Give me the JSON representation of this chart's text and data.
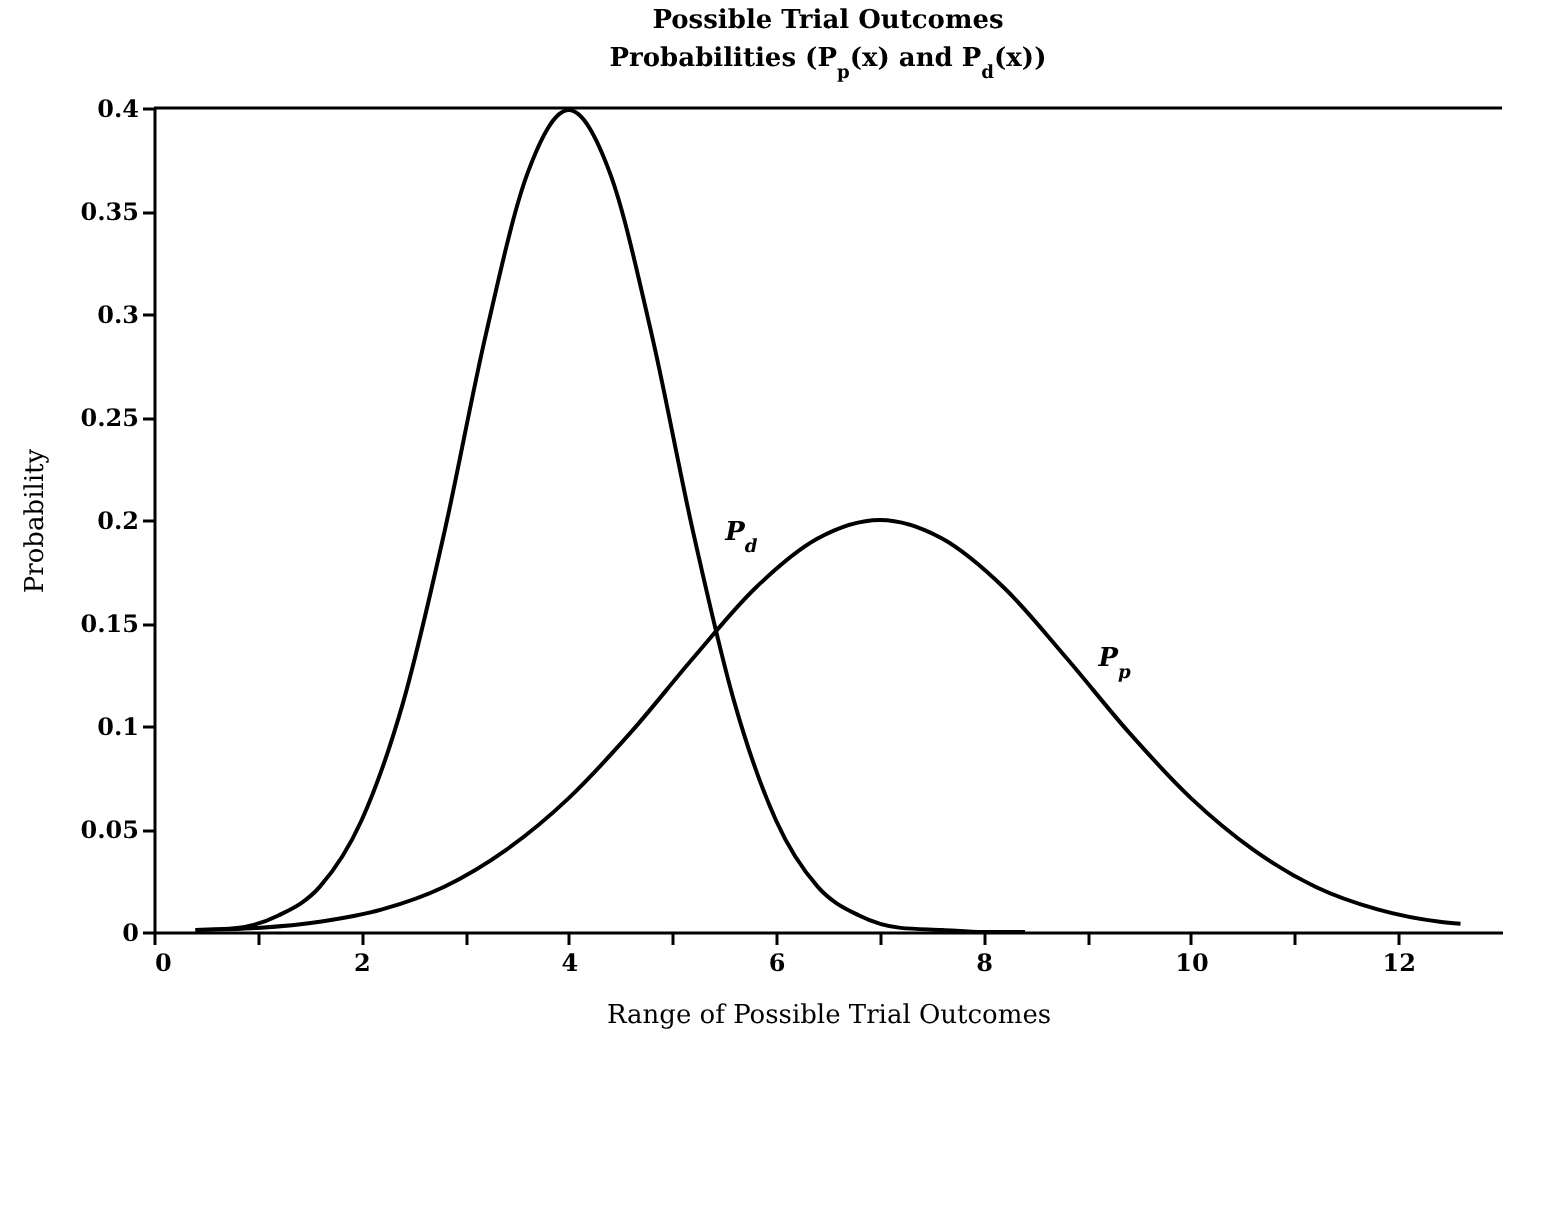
{
  "chart_data": {
    "type": "line",
    "title": "Possible Trial Outcomes",
    "subtitle": "Probabilities (P$_{p}$(x) and P$_{d}$(x))",
    "xlabel": "Range of Possible Trial Outcomes",
    "ylabel": "Probability",
    "xlim": [
      0,
      13
    ],
    "xticks": [
      0,
      {
        "value": 1,
        "label": null
      },
      2,
      {
        "value": 3,
        "label": null
      },
      4,
      {
        "value": 5,
        "label": null
      },
      6,
      {
        "value": 7,
        "label": null
      },
      8,
      {
        "value": 9,
        "label": null
      },
      10,
      {
        "value": 11,
        "label": null
      },
      12
    ],
    "ylim": [
      0,
      0.4
    ],
    "yticks": [
      0,
      0.05,
      0.1,
      0.15,
      0.2,
      0.25,
      0.3,
      0.35,
      0.4
    ],
    "grid": false,
    "legend": false,
    "marker": "none",
    "line_style": "solid",
    "series": [
      {
        "name": "P$_{d}$",
        "color": "#000000",
        "x": [
          0.4,
          0.8,
          1.2,
          1.6,
          2,
          2.4,
          2.8,
          3.2,
          3.6,
          4,
          4.4,
          4.8,
          5.2,
          5.6,
          6,
          6.4,
          6.8,
          7.2,
          7.6,
          8,
          8.4
        ],
        "values": [
          0.001,
          0.002,
          0.008,
          0.022,
          0.054,
          0.111,
          0.194,
          0.29,
          0.368,
          0.399,
          0.368,
          0.29,
          0.194,
          0.111,
          0.054,
          0.022,
          0.008,
          0.002,
          0.001,
          0,
          0
        ]
      },
      {
        "name": "P$_{p}$",
        "color": "#000000",
        "x": [
          0.4,
          1,
          1.6,
          2.2,
          2.8,
          3.4,
          4,
          4.6,
          5.2,
          5.8,
          6.4,
          7,
          7.6,
          8.2,
          8.8,
          9.4,
          10,
          10.6,
          11.2,
          11.8,
          12.4,
          12.6
        ],
        "values": [
          0.001,
          0.002,
          0.005,
          0.011,
          0.022,
          0.04,
          0.065,
          0.097,
          0.133,
          0.167,
          0.191,
          0.2,
          0.191,
          0.167,
          0.133,
          0.097,
          0.065,
          0.04,
          0.022,
          0.011,
          0.005,
          0.004
        ]
      }
    ]
  }
}
